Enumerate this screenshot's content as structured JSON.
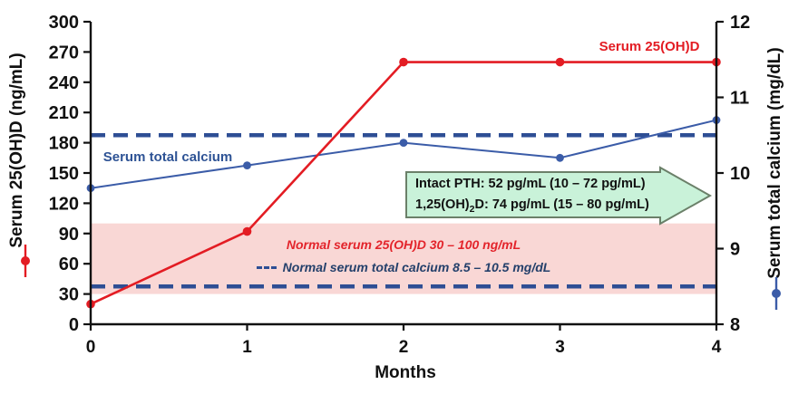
{
  "chart_data": {
    "type": "line",
    "grid": false,
    "x": [
      0,
      1,
      2,
      3,
      4
    ],
    "x_axis": {
      "label": "Months",
      "ticks": [
        0,
        1,
        2,
        3,
        4
      ],
      "min": 0,
      "max": 4
    },
    "left_axis": {
      "label": "Serum 25(OH)D (ng/mL)",
      "unit": "ng/mL",
      "min": 0,
      "max": 300,
      "tick_step": 30
    },
    "right_axis": {
      "label": "Serum total calcium (mg/dL)",
      "unit": "mg/dL",
      "min": 8,
      "max": 12,
      "tick_step": 1
    },
    "series": [
      {
        "name": "Serum 25(OH)D",
        "axis": "left",
        "color": "#e31c23",
        "marker": "circle",
        "values": [
          20,
          92,
          260,
          260,
          260
        ]
      },
      {
        "name": "Serum total calcium",
        "axis": "right",
        "color": "#3b5ca8",
        "marker": "circle",
        "values": [
          9.8,
          10.1,
          10.4,
          10.2,
          10.7
        ]
      }
    ],
    "reference_lines": {
      "axis": "right",
      "style": "dashed",
      "color": "#2e4e94",
      "values": [
        8.5,
        10.5
      ],
      "meaning": "Normal serum total calcium 8.5 – 10.5 mg/dL"
    },
    "normal_band": {
      "axis": "left",
      "range": [
        30,
        100
      ],
      "color": "#f9d7d5",
      "meaning": "Normal serum 25(OH)D 30 – 100 ng/mL"
    },
    "inset_values": {
      "intact_pth": {
        "label": "Intact PTH",
        "value": 52,
        "unit": "pg/mL",
        "reference_range": "10 – 72 pg/mL"
      },
      "one_25_oh2_d": {
        "label": "1,25(OH)2D",
        "value": 74,
        "unit": "pg/mL",
        "reference_range": "15 – 80 pg/mL"
      }
    },
    "annotations": {
      "series_label_red": "Serum 25(OH)D",
      "series_label_blue": "Serum total calcium",
      "band_label_red": "Normal serum 25(OH)D 30 – 100 ng/mL",
      "band_label_navy": "Normal serum total calcium 8.5 – 10.5 mg/dL",
      "arrow_line1": "Intact PTH: 52 pg/mL (10 – 72 pg/mL)",
      "arrow_line2_pre": "1,25(OH)",
      "arrow_line2_sub": "2",
      "arrow_line2_post": "D: 74 pg/mL (15 – 80 pg/mL)"
    },
    "colors": {
      "red_series": "#e31c23",
      "blue_series": "#3b5ca8",
      "navy_dashed": "#2e4e94",
      "navy_text": "#24406b",
      "blue_label_text": "#2e5395",
      "pink_band": "#f9d7d5",
      "arrow_fill": "#c9f2d9",
      "arrow_border": "#6b8069",
      "axis": "#111111"
    }
  }
}
